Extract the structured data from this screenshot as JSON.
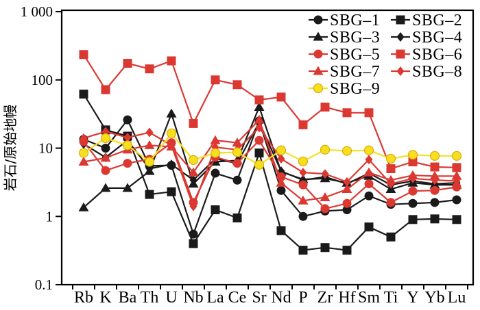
{
  "chart_data": {
    "type": "line",
    "title": "",
    "xlabel": "",
    "ylabel": "岩石/原始地幔",
    "yscale": "log",
    "ylim": [
      0.1,
      1000
    ],
    "grid": false,
    "legend_position": "top-right-inside",
    "frame": true,
    "ytick_values": [
      1000,
      100,
      10,
      1,
      0.1
    ],
    "ytick_labels": [
      "1 000",
      "100",
      "10",
      "1",
      "0.1"
    ],
    "categories": [
      "Rb",
      "K",
      "Ba",
      "Th",
      "U",
      "Nb",
      "La",
      "Ce",
      "Sr",
      "Nd",
      "P",
      "Zr",
      "Hf",
      "Sm",
      "Ti",
      "Y",
      "Yb",
      "Lu"
    ],
    "colors": {
      "black": "#1a1a1a",
      "red": "#DC3832",
      "yellow": "#F6E01E",
      "yellow_edge": "#DCA90F",
      "axis": "#000000"
    },
    "series": [
      {
        "id": "sbg-1",
        "label": "SBG–1",
        "marker": "circle",
        "color": "#1a1a1a",
        "values": [
          13.5,
          10,
          26,
          5.5,
          5.6,
          0.55,
          4.3,
          3.4,
          25,
          2.4,
          1.0,
          1.2,
          1.25,
          2.0,
          1.5,
          1.55,
          1.6,
          1.75
        ]
      },
      {
        "id": "sbg-2",
        "label": "SBG–2",
        "marker": "square",
        "color": "#1a1a1a",
        "values": [
          62,
          18.5,
          15,
          2.1,
          2.3,
          0.4,
          1.25,
          0.95,
          8.5,
          0.62,
          0.32,
          0.35,
          0.32,
          0.7,
          0.5,
          0.9,
          0.92,
          0.9
        ]
      },
      {
        "id": "sbg-3",
        "label": "SBG–3",
        "marker": "triangle",
        "color": "#1a1a1a",
        "values": [
          1.35,
          2.6,
          2.6,
          4.6,
          32,
          3.0,
          6.3,
          6.6,
          40,
          4.5,
          3.5,
          3.6,
          3.1,
          3.9,
          2.5,
          3.1,
          2.9,
          2.9
        ]
      },
      {
        "id": "sbg-4",
        "label": "SBG–4",
        "marker": "diamond",
        "color": "#1a1a1a",
        "values": [
          11.5,
          7.3,
          13,
          5.0,
          5.8,
          3.4,
          7.0,
          6.0,
          24,
          4.6,
          3.4,
          3.8,
          3.0,
          4.3,
          2.9,
          3.3,
          3.0,
          3.1
        ]
      },
      {
        "id": "sbg-5",
        "label": "SBG–5",
        "marker": "circle",
        "color": "#DC3832",
        "values": [
          12.5,
          4.7,
          6.0,
          6.9,
          12,
          1.6,
          7.4,
          6.0,
          13,
          3.8,
          2.9,
          1.3,
          1.55,
          3.0,
          1.6,
          2.35,
          2.4,
          2.7
        ]
      },
      {
        "id": "sbg-6",
        "label": "SBG–6",
        "marker": "square",
        "color": "#DC3832",
        "values": [
          235,
          72,
          175,
          145,
          190,
          23,
          100,
          85,
          51,
          56,
          22,
          40,
          33,
          33,
          5.0,
          6.3,
          5.3,
          5.2
        ]
      },
      {
        "id": "sbg-7",
        "label": "SBG–7",
        "marker": "triangle",
        "color": "#DC3832",
        "values": [
          6.3,
          7.2,
          9.5,
          11,
          10.5,
          4.4,
          13,
          12,
          26,
          3.1,
          1.7,
          1.9,
          2.5,
          4.4,
          3.4,
          4.0,
          3.9,
          3.9
        ]
      },
      {
        "id": "sbg-8",
        "label": "SBG–8",
        "marker": "diamond",
        "color": "#DC3832",
        "values": [
          14,
          17.5,
          14.3,
          17,
          11,
          1.4,
          10.3,
          9.5,
          20,
          7.0,
          4.4,
          4.2,
          3.2,
          6.8,
          3.0,
          3.6,
          3.4,
          3.3
        ]
      },
      {
        "id": "sbg-9",
        "label": "SBG–9",
        "marker": "circle",
        "color": "#F6E01E",
        "edge": "#DCA90F",
        "values": [
          8.5,
          14,
          11,
          6.3,
          16.5,
          6.7,
          8.5,
          8.7,
          5.7,
          9.3,
          6.4,
          9.5,
          9.1,
          9.3,
          7.0,
          8.0,
          7.7,
          7.7
        ]
      }
    ]
  }
}
